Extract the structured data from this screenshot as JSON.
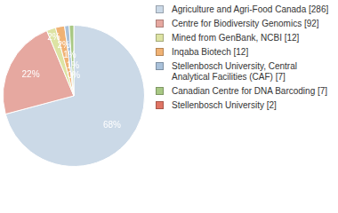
{
  "chart_data": {
    "type": "pie",
    "categories": [
      "Agriculture and Agri-Food Canada [286]",
      "Centre for Biodiversity Genomics [92]",
      "Mined from GenBank, NCBI [12]",
      "Inqaba Biotech [12]",
      "Stellenbosch University, Central Analytical Facilities (CAF) [7]",
      "Canadian Centre for DNA Barcoding [7]",
      "Stellenbosch University [2]"
    ],
    "values": [
      68,
      22,
      2,
      2,
      1,
      1,
      0
    ],
    "value_labels": [
      "68%",
      "22%",
      "2%",
      "2%",
      "1%",
      "1%",
      "0%"
    ],
    "colors": [
      "#cbd9e7",
      "#e6a8a0",
      "#dde3a3",
      "#f0b274",
      "#a9c1da",
      "#a8c884",
      "#e07464"
    ],
    "data_labels": true,
    "legend": "top right"
  }
}
